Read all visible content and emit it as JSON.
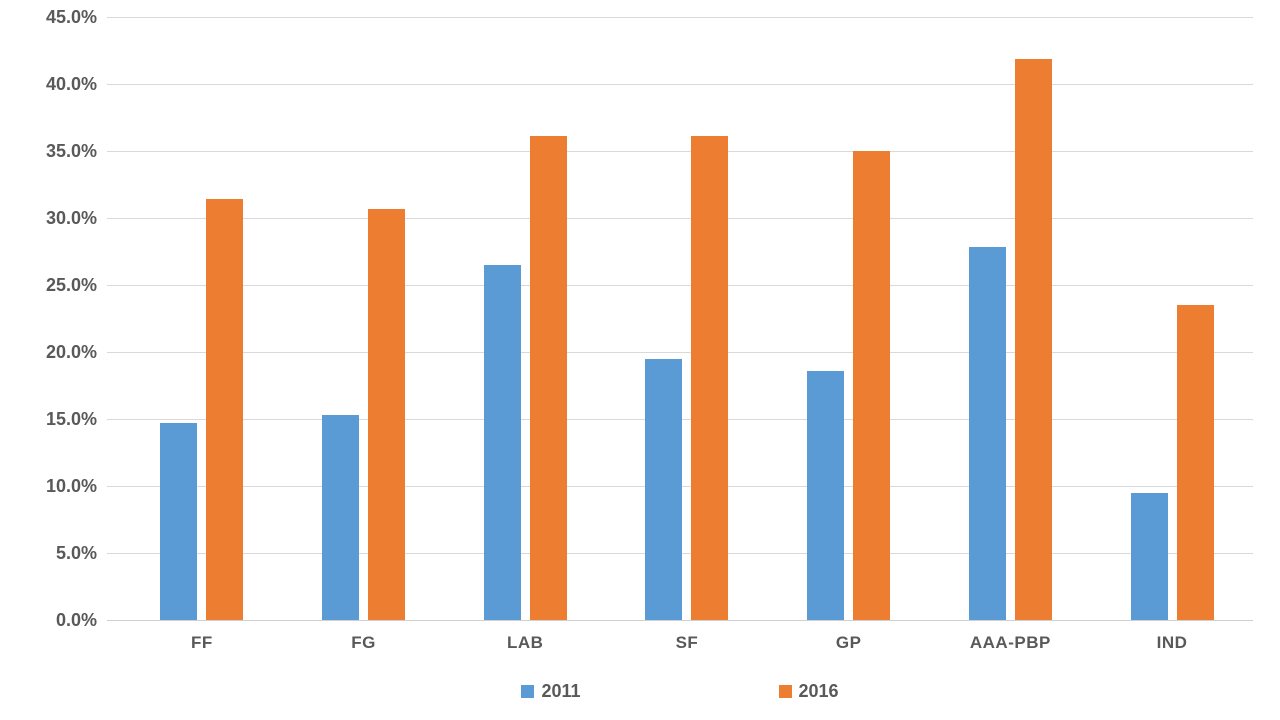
{
  "chart_data": {
    "type": "bar",
    "categories": [
      "FF",
      "FG",
      "LAB",
      "SF",
      "GP",
      "AAA-PBP",
      "IND"
    ],
    "series": [
      {
        "name": "2011",
        "color": "#5B9BD5",
        "values": [
          14.7,
          15.3,
          26.5,
          19.5,
          18.6,
          27.8,
          9.5
        ]
      },
      {
        "name": "2016",
        "color": "#ED7D31",
        "values": [
          31.4,
          30.7,
          36.1,
          36.1,
          35.0,
          41.9,
          23.5
        ]
      }
    ],
    "ylim": [
      0,
      45
    ],
    "ytick_step": 5,
    "ytick_labels": [
      "0.0%",
      "5.0%",
      "10.0%",
      "15.0%",
      "20.0%",
      "25.0%",
      "30.0%",
      "35.0%",
      "40.0%",
      "45.0%"
    ],
    "grid": true,
    "gridline_color": "#D9D9D9",
    "axis_text_color": "#595959",
    "legend_position": "bottom",
    "title": "",
    "xlabel": "",
    "ylabel": ""
  }
}
